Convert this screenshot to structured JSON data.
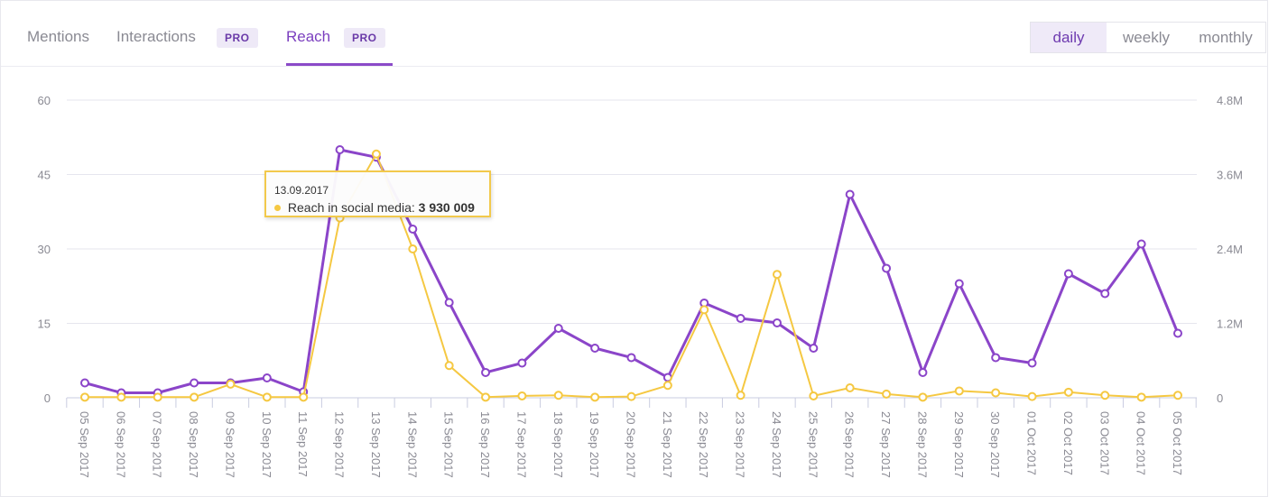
{
  "tabs": [
    {
      "label": "Mentions",
      "active": false,
      "pro": null
    },
    {
      "label": "Interactions",
      "active": false,
      "pro": "PRO"
    },
    {
      "label": "Reach",
      "active": true,
      "pro": "PRO"
    }
  ],
  "period": {
    "options": [
      "daily",
      "weekly",
      "monthly"
    ],
    "selected": "daily"
  },
  "tooltip": {
    "date": "13.09.2017",
    "label": "Reach in social media:",
    "value": "3 930 009"
  },
  "colors": {
    "primary": "#8b45c9",
    "secondary": "#f5c842"
  },
  "chart_data": {
    "type": "line",
    "x": [
      "05 Sep 2017",
      "06 Sep 2017",
      "07 Sep 2017",
      "08 Sep 2017",
      "09 Sep 2017",
      "10 Sep 2017",
      "11 Sep 2017",
      "12 Sep 2017",
      "13 Sep 2017",
      "14 Sep 2017",
      "15 Sep 2017",
      "16 Sep 2017",
      "17 Sep 2017",
      "18 Sep 2017",
      "19 Sep 2017",
      "20 Sep 2017",
      "21 Sep 2017",
      "22 Sep 2017",
      "23 Sep 2017",
      "24 Sep 2017",
      "25 Sep 2017",
      "26 Sep 2017",
      "27 Sep 2017",
      "28 Sep 2017",
      "29 Sep 2017",
      "30 Sep 2017",
      "01 Oct 2017",
      "02 Oct 2017",
      "03 Oct 2017",
      "04 Oct 2017",
      "05 Oct 2017"
    ],
    "left_axis": {
      "ticks": [
        "0",
        "15",
        "30",
        "45",
        "60"
      ],
      "ylim": [
        0,
        60
      ]
    },
    "right_axis": {
      "ticks": [
        "0",
        "1.2M",
        "2.4M",
        "3.6M",
        "4.8M"
      ],
      "ylim": [
        0,
        4800000
      ]
    },
    "series": [
      {
        "axis": "left",
        "color": "#8b45c9",
        "values": [
          3,
          1,
          1,
          3,
          3,
          4,
          1.2,
          50,
          48.5,
          34,
          19.2,
          5.1,
          7,
          14,
          10,
          8.1,
          4.1,
          19.1,
          16,
          15.1,
          10,
          41,
          26.1,
          5.1,
          23,
          8.1,
          7,
          25,
          21,
          31,
          13
        ]
      },
      {
        "axis": "right",
        "color": "#f5c842",
        "values": [
          10000,
          10000,
          10000,
          10000,
          220000,
          10000,
          10000,
          2900000,
          3930009,
          2400000,
          520000,
          10000,
          30000,
          40000,
          10000,
          20000,
          200000,
          1420000,
          40000,
          1990000,
          30000,
          160000,
          60000,
          10000,
          110000,
          80000,
          20000,
          90000,
          40000,
          10000,
          40000
        ]
      }
    ]
  }
}
